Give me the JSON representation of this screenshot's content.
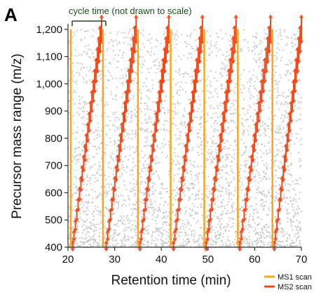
{
  "panel_label": "A",
  "annotation": "cycle time (not drawn to scale)",
  "chart_data": {
    "type": "scatter",
    "xlabel": "Retention time (min)",
    "ylabel": "Precursor mass range (m/z)",
    "xlim": [
      20,
      70
    ],
    "ylim": [
      400,
      1220
    ],
    "xticks": [
      "20",
      "30",
      "40",
      "50",
      "60",
      "70"
    ],
    "yticks": [
      "400",
      "500",
      "600",
      "700",
      "800",
      "900",
      "1,000",
      "1,100",
      "1,200"
    ],
    "grid": false,
    "legend_position": "bottom-right",
    "background_points": {
      "color": "#c9c9c9",
      "description_count": 3500,
      "x_range": [
        20,
        70
      ],
      "y_range": [
        400,
        1200
      ]
    },
    "ms1_scans": [
      20.6,
      27.5,
      35.0,
      42.0,
      49.2,
      56.4,
      63.8
    ],
    "ms2_cycles": [
      {
        "x_start": 21.0,
        "x_end": 27.2
      },
      {
        "x_start": 28.2,
        "x_end": 34.6
      },
      {
        "x_start": 35.4,
        "x_end": 41.6
      },
      {
        "x_start": 42.6,
        "x_end": 48.8
      },
      {
        "x_start": 49.6,
        "x_end": 56.0
      },
      {
        "x_start": 56.8,
        "x_end": 63.4
      },
      {
        "x_start": 64.2,
        "x_end": 70.0
      }
    ],
    "ms2_mass_range": [
      405,
      1200
    ],
    "series": [
      {
        "name": "MS1 scan",
        "color": "#f5a623"
      },
      {
        "name": "MS2 scan",
        "color": "#f04a1a"
      }
    ]
  }
}
